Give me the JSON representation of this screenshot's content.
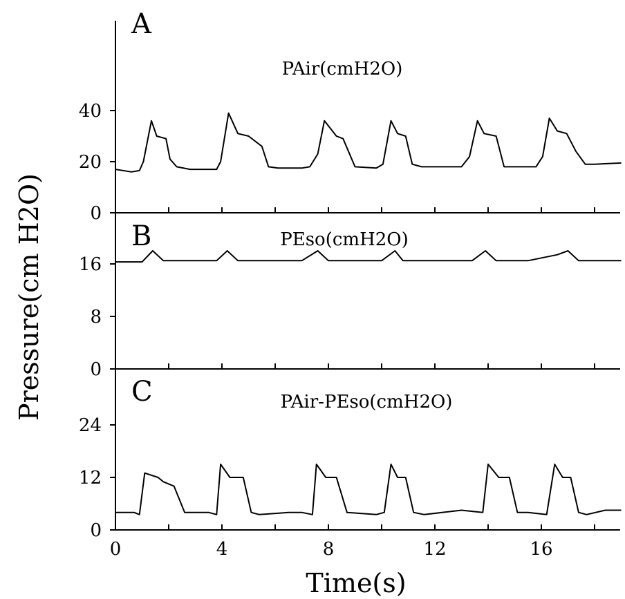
{
  "ylabel": "Pressure(cm H2O)",
  "xlabel": "Time(s)",
  "x_ticks": [
    "0",
    "4",
    "8",
    "12",
    "16"
  ],
  "chart_data": [
    {
      "type": "line",
      "panel": "A",
      "title": "PAir(cmH2O)",
      "ylim": [
        0,
        40
      ],
      "y_ticks": [
        "0",
        "20",
        "40"
      ],
      "xlim": [
        0,
        19
      ],
      "x": [
        0,
        0.6,
        0.9,
        1.05,
        1.35,
        1.55,
        1.9,
        2.05,
        2.3,
        2.8,
        3.4,
        3.8,
        3.95,
        4.25,
        4.6,
        5.0,
        5.5,
        5.75,
        6.1,
        7.0,
        7.3,
        7.6,
        7.85,
        8.3,
        8.55,
        9.0,
        9.8,
        10.05,
        10.35,
        10.6,
        10.9,
        11.15,
        11.5,
        12.2,
        13.0,
        13.3,
        13.6,
        13.85,
        14.3,
        14.6,
        15.0,
        15.8,
        16.05,
        16.3,
        16.6,
        16.95,
        17.3,
        17.65,
        18.0,
        19.0
      ],
      "values": [
        17,
        16,
        16.5,
        20,
        36,
        30,
        29,
        21,
        18,
        17,
        17,
        17,
        20,
        39,
        31,
        30,
        26,
        18,
        17.5,
        17.5,
        18,
        23,
        36,
        30,
        29,
        18,
        17.5,
        19,
        36,
        31,
        30,
        19,
        18,
        18,
        18,
        22,
        36,
        31,
        30,
        18,
        18,
        18,
        22,
        37,
        32,
        31,
        24,
        19,
        19,
        19.5
      ]
    },
    {
      "type": "line",
      "panel": "B",
      "title": "PEso(cmH2O)",
      "ylim": [
        0,
        16
      ],
      "y_ticks": [
        "0",
        "8",
        "16"
      ],
      "xlim": [
        0,
        19
      ],
      "x": [
        0,
        1.0,
        1.4,
        1.8,
        2.5,
        3.8,
        4.2,
        4.6,
        5.5,
        7.0,
        7.6,
        8.0,
        9.0,
        10.0,
        10.5,
        10.8,
        12.0,
        13.4,
        13.9,
        14.3,
        15.5,
        16.6,
        17.0,
        17.4,
        19.0
      ],
      "values": [
        16.3,
        16.3,
        18,
        16.5,
        16.5,
        16.5,
        18,
        16.5,
        16.5,
        16.5,
        18,
        16.5,
        16.5,
        16.5,
        18,
        16.5,
        16.5,
        16.5,
        18,
        16.5,
        16.5,
        17.4,
        18,
        16.5,
        16.5
      ]
    },
    {
      "type": "line",
      "panel": "C",
      "title": "PAir-PEso(cmH2O)",
      "ylim": [
        0,
        24
      ],
      "y_ticks": [
        "0",
        "12",
        "24"
      ],
      "xlim": [
        0,
        19
      ],
      "x": [
        0,
        0.7,
        0.9,
        1.1,
        1.6,
        1.8,
        2.2,
        2.6,
        3.5,
        3.8,
        3.95,
        4.3,
        4.8,
        5.1,
        5.4,
        6.5,
        7.0,
        7.4,
        7.55,
        7.9,
        8.3,
        8.7,
        9.8,
        10.1,
        10.35,
        10.6,
        10.9,
        11.2,
        11.6,
        13.0,
        13.8,
        14.0,
        14.4,
        14.8,
        15.1,
        15.5,
        16.2,
        16.5,
        16.8,
        17.1,
        17.4,
        17.7,
        18.4,
        19.0
      ],
      "values": [
        4,
        4,
        3.5,
        13,
        12,
        11,
        10,
        4,
        4,
        3.5,
        15,
        12,
        12,
        4,
        3.5,
        4,
        4,
        3.5,
        15,
        12,
        12,
        4,
        3.5,
        4,
        15,
        12,
        12,
        4,
        3.5,
        4.5,
        4,
        15,
        12,
        12,
        4,
        4,
        3.5,
        15,
        12,
        12,
        4,
        3.5,
        4.5,
        4.5
      ]
    }
  ]
}
